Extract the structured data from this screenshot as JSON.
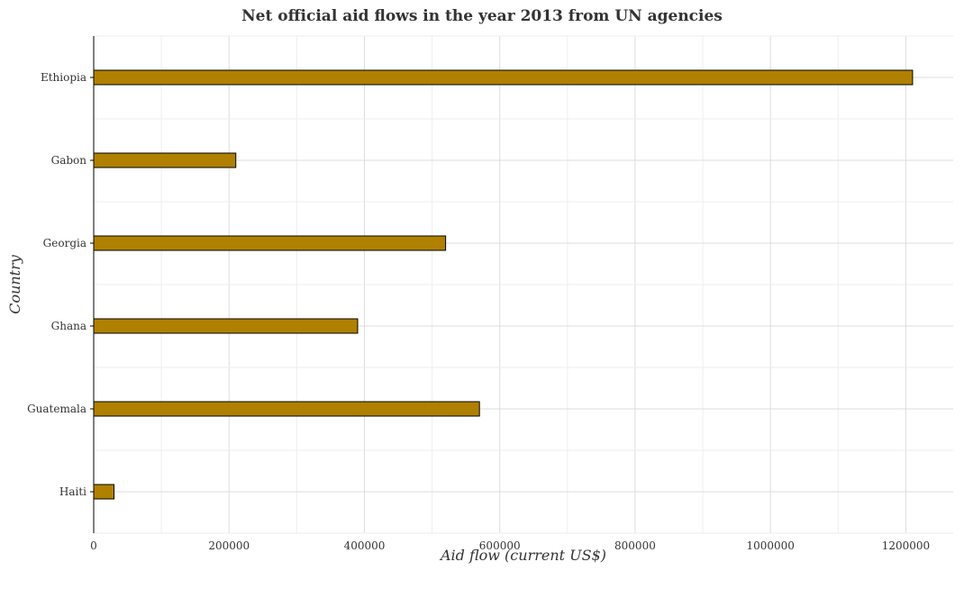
{
  "chart_data": {
    "type": "bar",
    "orientation": "horizontal",
    "title": "Net official aid flows in the year 2013 from UN agencies",
    "xlabel": "Aid flow (current US$)",
    "ylabel": "Country",
    "categories": [
      "Ethiopia",
      "Gabon",
      "Georgia",
      "Ghana",
      "Guatemala",
      "Haiti"
    ],
    "values": [
      1210000,
      210000,
      520000,
      390000,
      570000,
      30000
    ],
    "xlim": [
      0,
      1270000
    ],
    "xticks": [
      0,
      200000,
      400000,
      600000,
      800000,
      1000000,
      1200000
    ],
    "xtick_labels": [
      "0",
      "200000",
      "400000",
      "600000",
      "800000",
      "1000000",
      "1200000"
    ],
    "grid": true,
    "bar_color": "#b08000",
    "bar_edge_color": "#000000"
  }
}
